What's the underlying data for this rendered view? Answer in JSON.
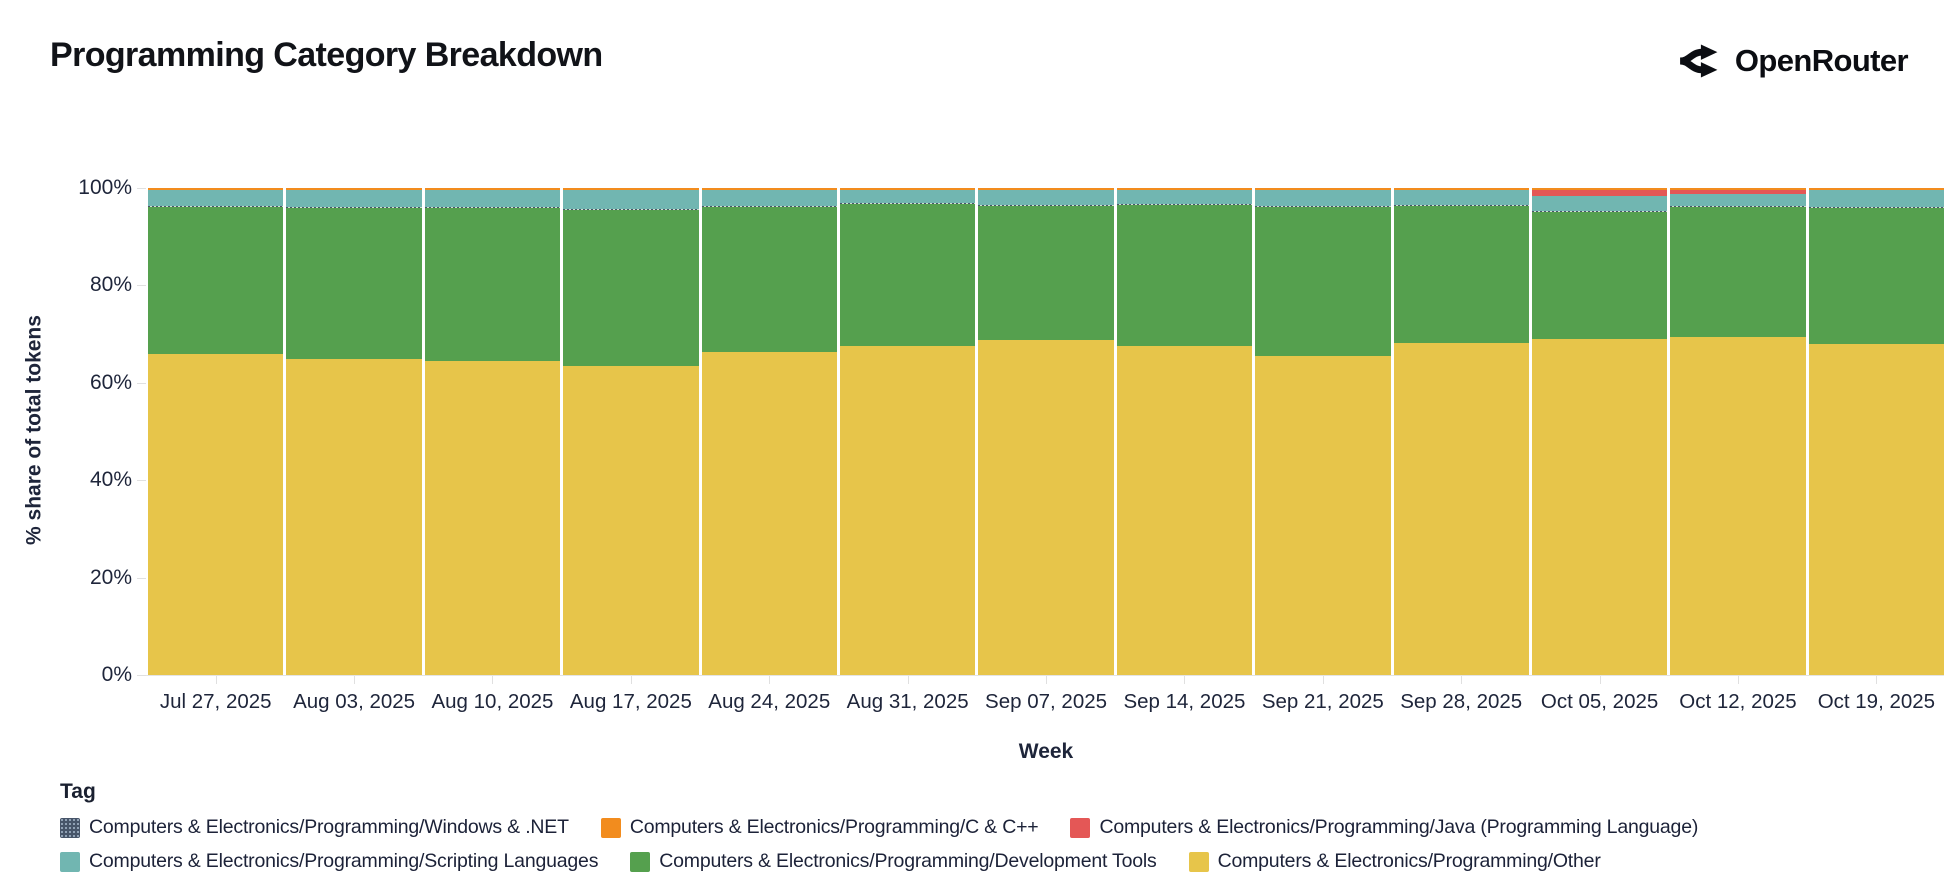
{
  "header": {
    "title": "Programming Category Breakdown",
    "brand": "OpenRouter"
  },
  "chart_data": {
    "type": "bar",
    "stacked": true,
    "normalized_percent": true,
    "title": "Programming Category Breakdown",
    "xlabel": "Week",
    "ylabel": "% share of total tokens",
    "ylim": [
      0,
      100
    ],
    "ytick_labels": [
      "0%",
      "20%",
      "40%",
      "60%",
      "80%",
      "100%"
    ],
    "ytick_values": [
      0,
      20,
      40,
      60,
      80,
      100
    ],
    "grid": false,
    "legend_title": "Tag",
    "legend_position": "bottom",
    "categories": [
      "Jul 27, 2025",
      "Aug 03, 2025",
      "Aug 10, 2025",
      "Aug 17, 2025",
      "Aug 24, 2025",
      "Aug 31, 2025",
      "Sep 07, 2025",
      "Sep 14, 2025",
      "Sep 21, 2025",
      "Sep 28, 2025",
      "Oct 05, 2025",
      "Oct 12, 2025",
      "Oct 19, 2025"
    ],
    "series": [
      {
        "key": "c-cpp",
        "name": "Computers & Electronics/Programming/C & C++",
        "color": "#f28c1e",
        "values": [
          0.4,
          0.4,
          0.4,
          0.4,
          0.4,
          0.4,
          0.4,
          0.4,
          0.4,
          0.4,
          0.4,
          0.4,
          0.4
        ]
      },
      {
        "key": "java",
        "name": "Computers & Electronics/Programming/Java (Programming Language)",
        "color": "#e45756",
        "values": [
          0.1,
          0.1,
          0.1,
          0.1,
          0.1,
          0.1,
          0.1,
          0.1,
          0.1,
          0.1,
          1.2,
          0.8,
          0.1
        ]
      },
      {
        "key": "scripting",
        "name": "Computers & Electronics/Programming/Scripting Languages",
        "color": "#71b6b1",
        "values": [
          3.3,
          3.5,
          3.5,
          3.9,
          3.3,
          2.5,
          2.9,
          2.7,
          3.3,
          2.9,
          3.2,
          2.6,
          3.5
        ]
      },
      {
        "key": "windows",
        "name": "Computers & Electronics/Programming/Windows & .NET",
        "color": "#475569",
        "pattern": "dotted",
        "values": [
          0.2,
          0.2,
          0.2,
          0.2,
          0.2,
          0.2,
          0.2,
          0.2,
          0.2,
          0.2,
          0.2,
          0.2,
          0.2
        ]
      },
      {
        "key": "dev-tools",
        "name": "Computers & Electronics/Programming/Development Tools",
        "color": "#55a04e",
        "values": [
          30.0,
          30.9,
          31.4,
          31.9,
          29.7,
          29.3,
          27.7,
          29.1,
          30.4,
          28.3,
          26.1,
          26.7,
          27.9
        ]
      },
      {
        "key": "other",
        "name": "Computers & Electronics/Programming/Other",
        "color": "#e7c54a",
        "values": [
          66.0,
          64.9,
          64.4,
          63.5,
          66.3,
          67.5,
          68.7,
          67.5,
          65.6,
          68.1,
          68.9,
          69.3,
          67.9
        ]
      }
    ],
    "stack_order_note": "series listed top-of-stack first; Other is the bottom band",
    "legend_order": [
      "windows",
      "c-cpp",
      "java",
      "scripting",
      "dev-tools",
      "other"
    ],
    "legend_rows": [
      [
        "windows",
        "c-cpp",
        "java"
      ],
      [
        "scripting",
        "dev-tools",
        "other"
      ]
    ]
  }
}
